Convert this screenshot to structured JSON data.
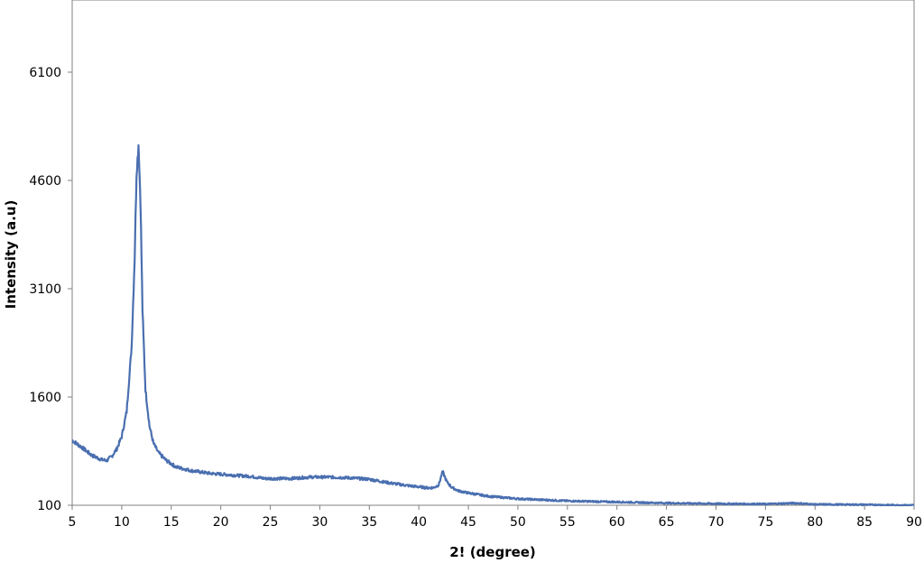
{
  "chart_data": {
    "type": "line",
    "title": "",
    "xlabel": "2! (degree)",
    "ylabel": "Intensity (a.u)",
    "xlim": [
      5,
      90
    ],
    "ylim": [
      100,
      7100
    ],
    "x_ticks": [
      5,
      10,
      15,
      20,
      25,
      30,
      35,
      40,
      45,
      50,
      55,
      60,
      65,
      70,
      75,
      80,
      85,
      90
    ],
    "y_ticks": [
      100,
      1600,
      3100,
      4600,
      6100
    ],
    "grid": false,
    "legend": "none",
    "line_color": "#4a6fb0",
    "series": [
      {
        "x": [
          5,
          6,
          7,
          8,
          8.5,
          9,
          9.5,
          10,
          10.5,
          11,
          11.3,
          11.5,
          11.7,
          11.9,
          12.1,
          12.4,
          12.8,
          13.2,
          13.7,
          14.5,
          15.5,
          17,
          19,
          21,
          23,
          24.5,
          25,
          27,
          29,
          31,
          33,
          35,
          37,
          39,
          41,
          41.5,
          42,
          42.4,
          42.8,
          43.3,
          44,
          45,
          47,
          50,
          55,
          60,
          65,
          70,
          75,
          78,
          80,
          85,
          88,
          90
        ],
        "y": [
          1000,
          900,
          790,
          730,
          720,
          780,
          880,
          1050,
          1400,
          2300,
          3500,
          4700,
          5100,
          4300,
          2800,
          1700,
          1200,
          960,
          830,
          720,
          630,
          580,
          540,
          520,
          500,
          470,
          470,
          470,
          490,
          490,
          480,
          460,
          410,
          370,
          340,
          345,
          380,
          570,
          430,
          350,
          300,
          270,
          225,
          190,
          160,
          145,
          130,
          122,
          117,
          130,
          112,
          108,
          102,
          100
        ]
      }
    ]
  }
}
